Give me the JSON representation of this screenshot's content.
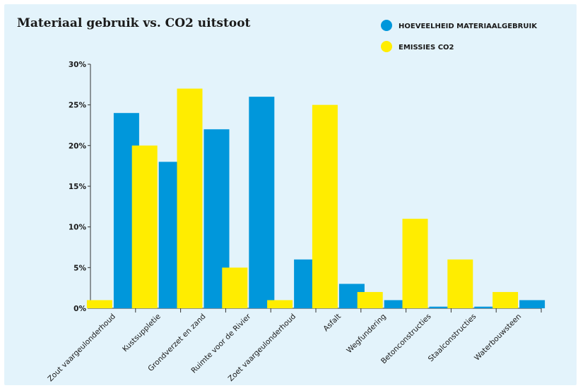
{
  "chart_data": {
    "type": "bar",
    "title": "Materiaal gebruik vs. CO2 uitstoot",
    "categories": [
      "Zout vaargeulonderhoud",
      "Kustsuppletie",
      "Grondverzet en zand",
      "Ruimte voor de Rivier",
      "Zoet vaargeulonderhoud",
      "Asfalt",
      "Wegfundering",
      "Betonconstructies",
      "Staalconstructies",
      "Waterbouwsteen"
    ],
    "series": [
      {
        "name": "EMISSIES CO2",
        "color": "#ffed00",
        "values": [
          1,
          20,
          27,
          5,
          1,
          25,
          2,
          11,
          6,
          2
        ]
      },
      {
        "name": "HOEVEELHEID MATERIAALGEBRUIK",
        "color": "#0097db",
        "values": [
          24,
          18,
          22,
          26,
          6,
          3,
          1,
          0.2,
          0.2,
          1
        ]
      }
    ],
    "ylim": [
      0,
      30
    ],
    "yticks": [
      "0%",
      "5%",
      "10%",
      "15%",
      "20%",
      "25%",
      "30%"
    ],
    "grid": false,
    "legend_position": "top-right",
    "legend_order": [
      1,
      0
    ]
  }
}
